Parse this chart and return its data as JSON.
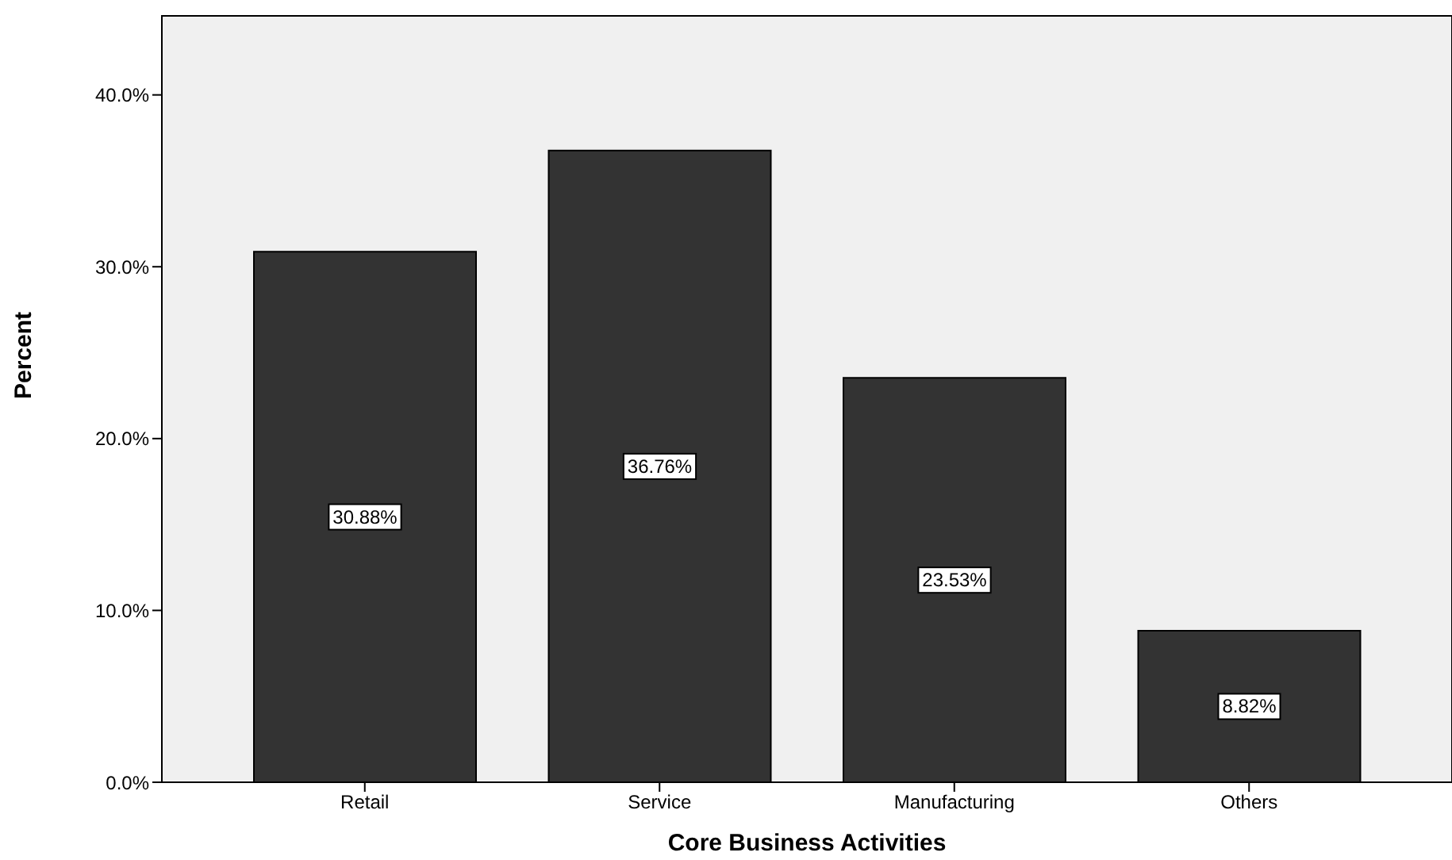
{
  "chart_data": {
    "type": "bar",
    "xlabel": "Core Business Activities",
    "ylabel": "Percent",
    "categories": [
      "Retail",
      "Service",
      "Manufacturing",
      "Others"
    ],
    "values": [
      30.88,
      36.76,
      23.53,
      8.82
    ],
    "value_labels": [
      "30.88%",
      "36.76%",
      "23.53%",
      "8.82%"
    ],
    "color": "#333333",
    "ylim": [
      0,
      44.6
    ],
    "yticks": [
      {
        "value": 0,
        "label": "0.0%"
      },
      {
        "value": 10,
        "label": "10.0%"
      },
      {
        "value": 20,
        "label": "20.0%"
      },
      {
        "value": 30,
        "label": "30.0%"
      },
      {
        "value": 40,
        "label": "40.0%"
      }
    ]
  }
}
